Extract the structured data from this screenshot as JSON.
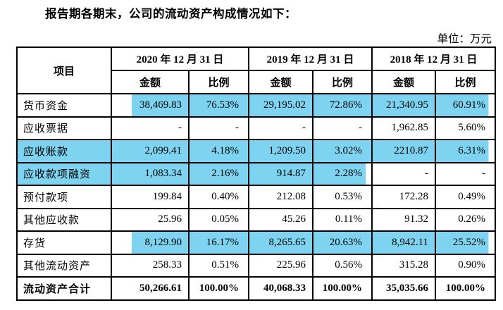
{
  "title": "报告期各期末，公司的流动资产构成情况如下：",
  "unit_label": "单位：万元",
  "highlight_color": "#7ed3f0",
  "table": {
    "header": {
      "item_col": "项目",
      "periods": [
        "2020 年 12 月 31 日",
        "2019 年 12 月 31 日",
        "2018 年 12 月 31 日"
      ],
      "amount_label": "金额",
      "ratio_label": "比例"
    },
    "rows": [
      {
        "label": "货币资金",
        "label_hl": false,
        "bold": false,
        "cells": [
          {
            "v": "38,469.83",
            "hl": "left"
          },
          {
            "v": "76.53%",
            "hl": "full"
          },
          {
            "v": "29,195.02",
            "hl": "full"
          },
          {
            "v": "72.86%",
            "hl": "full"
          },
          {
            "v": "21,340.95",
            "hl": "full"
          },
          {
            "v": "60.91%",
            "hl": "right"
          }
        ]
      },
      {
        "label": "应收票据",
        "label_hl": false,
        "bold": false,
        "cells": [
          {
            "v": "-",
            "hl": "none"
          },
          {
            "v": "-",
            "hl": "none"
          },
          {
            "v": "-",
            "hl": "none"
          },
          {
            "v": "-",
            "hl": "none"
          },
          {
            "v": "1,962.85",
            "hl": "none"
          },
          {
            "v": "5.60%",
            "hl": "none"
          }
        ]
      },
      {
        "label": "应收账款",
        "label_hl": true,
        "bold": false,
        "cells": [
          {
            "v": "2,099.41",
            "hl": "full"
          },
          {
            "v": "4.18%",
            "hl": "full"
          },
          {
            "v": "1,209.50",
            "hl": "full"
          },
          {
            "v": "3.02%",
            "hl": "full"
          },
          {
            "v": "2210.87",
            "hl": "full"
          },
          {
            "v": "6.31%",
            "hl": "right"
          }
        ]
      },
      {
        "label": "应收款项融资",
        "label_hl": true,
        "bold": false,
        "cells": [
          {
            "v": "1,083.34",
            "hl": "full"
          },
          {
            "v": "2.16%",
            "hl": "full"
          },
          {
            "v": "914.87",
            "hl": "full"
          },
          {
            "v": "2.28%",
            "hl": "right"
          },
          {
            "v": "-",
            "hl": "none"
          },
          {
            "v": "-",
            "hl": "none"
          }
        ]
      },
      {
        "label": "预付款项",
        "label_hl": false,
        "bold": false,
        "cells": [
          {
            "v": "199.84",
            "hl": "none"
          },
          {
            "v": "0.40%",
            "hl": "none"
          },
          {
            "v": "212.08",
            "hl": "none"
          },
          {
            "v": "0.53%",
            "hl": "none"
          },
          {
            "v": "172.28",
            "hl": "none"
          },
          {
            "v": "0.49%",
            "hl": "none"
          }
        ]
      },
      {
        "label": "其他应收款",
        "label_hl": false,
        "bold": false,
        "cells": [
          {
            "v": "25.96",
            "hl": "none"
          },
          {
            "v": "0.05%",
            "hl": "none"
          },
          {
            "v": "45.26",
            "hl": "none"
          },
          {
            "v": "0.11%",
            "hl": "none"
          },
          {
            "v": "91.32",
            "hl": "none"
          },
          {
            "v": "0.26%",
            "hl": "none"
          }
        ]
      },
      {
        "label": "存货",
        "label_hl": false,
        "bold": false,
        "cells": [
          {
            "v": "8,129.90",
            "hl": "left"
          },
          {
            "v": "16.17%",
            "hl": "full"
          },
          {
            "v": "8,265.65",
            "hl": "full"
          },
          {
            "v": "20.63%",
            "hl": "full"
          },
          {
            "v": "8,942.11",
            "hl": "full"
          },
          {
            "v": "25.52%",
            "hl": "right"
          }
        ]
      },
      {
        "label": "其他流动资产",
        "label_hl": false,
        "bold": false,
        "cells": [
          {
            "v": "258.33",
            "hl": "none"
          },
          {
            "v": "0.51%",
            "hl": "none"
          },
          {
            "v": "225.96",
            "hl": "none"
          },
          {
            "v": "0.56%",
            "hl": "none"
          },
          {
            "v": "315.28",
            "hl": "none"
          },
          {
            "v": "0.90%",
            "hl": "none"
          }
        ]
      },
      {
        "label": "流动资产合计",
        "label_hl": false,
        "bold": true,
        "cells": [
          {
            "v": "50,266.61",
            "hl": "none"
          },
          {
            "v": "100.00%",
            "hl": "none"
          },
          {
            "v": "40,068.33",
            "hl": "none"
          },
          {
            "v": "100.00%",
            "hl": "none"
          },
          {
            "v": "35,035.66",
            "hl": "none"
          },
          {
            "v": "100.00%",
            "hl": "none"
          }
        ]
      }
    ]
  }
}
